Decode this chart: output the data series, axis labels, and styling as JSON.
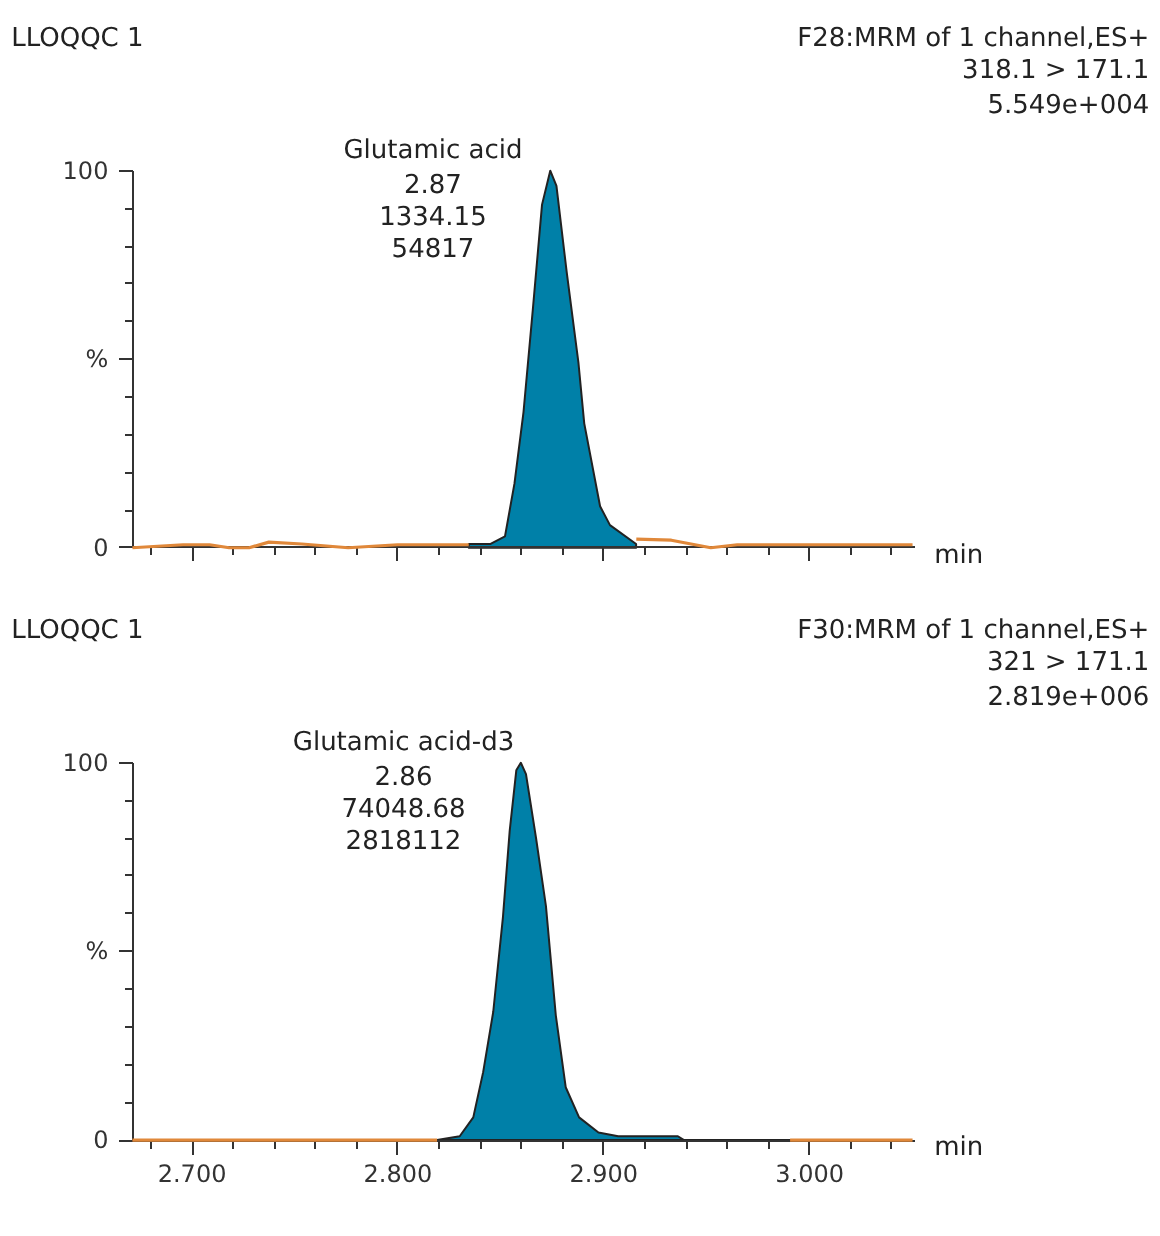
{
  "chart_data": [
    {
      "type": "area",
      "title": "LLOQQC 1",
      "subtitle": "F28:MRM of 1 channel,ES+\n318.1 > 171.1\n5.549e+004",
      "xlabel": "min",
      "xlim": [
        2.671,
        3.051
      ],
      "ylim": [
        0,
        100
      ],
      "xticks": [
        {
          "value": 2.7,
          "label": null
        },
        {
          "value": 2.8,
          "label": null
        },
        {
          "value": 2.9,
          "label": null
        },
        {
          "value": 3.0,
          "label": null
        }
      ],
      "yticks": [
        0,
        {
          "value": 50,
          "label": "%"
        },
        100
      ],
      "tick_labels": "y",
      "annotations": [
        {
          "text": "Glutamic acid\n2.87\n1334.15\n54817",
          "x": 2.874,
          "y": 100
        }
      ],
      "series": [
        {
          "type": "line",
          "color": "#e0883a",
          "x": [
            2.671,
            2.6956,
            2.7085,
            2.718,
            2.7277,
            2.7373,
            2.7533,
            2.7758,
            2.7998,
            2.8344
          ],
          "values": [
            0,
            0.8,
            0.8,
            0,
            0,
            1.5,
            1,
            0,
            0.8,
            0.8
          ]
        },
        {
          "type": "line",
          "color": "#e0883a",
          "x": [
            2.9158,
            2.9328,
            2.952,
            2.9648,
            2.9712,
            3.05
          ],
          "values": [
            2.3,
            2,
            0,
            0.8,
            0.8,
            0.8
          ]
        },
        {
          "color": "#0080a8",
          "x": [
            2.8344,
            2.845,
            2.852,
            2.8566,
            2.861,
            2.8655,
            2.87,
            2.874,
            2.877,
            2.882,
            2.8877,
            2.8905,
            2.8982,
            2.903,
            2.9157
          ],
          "values": [
            1,
            1,
            3,
            17,
            36,
            63,
            91,
            100,
            96,
            73,
            49,
            33,
            11,
            6,
            1
          ]
        }
      ]
    },
    {
      "type": "area",
      "title": "LLOQQC 1",
      "subtitle": "F30:MRM of 1 channel,ES+\n321 > 171.1\n2.819e+006",
      "xlabel": "min",
      "xlim": [
        2.671,
        3.051
      ],
      "ylim": [
        0,
        100
      ],
      "xticks": [
        {
          "value": 2.7,
          "label": "2.700"
        },
        {
          "value": 2.8,
          "label": "2.800"
        },
        {
          "value": 2.9,
          "label": "2.900"
        },
        {
          "value": 3.0,
          "label": "3.000"
        }
      ],
      "yticks": [
        0,
        {
          "value": 50,
          "label": "%"
        },
        100
      ],
      "annotations": [
        {
          "text": "Glutamic acid-d3\n2.86\n74048.68\n2818112",
          "x": 2.8597,
          "y": 100
        }
      ],
      "series": [
        {
          "type": "line",
          "color": "#e0883a",
          "x": [
            2.671,
            2.819
          ],
          "values": [
            0,
            0
          ]
        },
        {
          "type": "line",
          "color": "#e0883a",
          "x": [
            2.9905,
            3.05
          ],
          "values": [
            0,
            0
          ]
        },
        {
          "color": "#0080a8",
          "x": [
            2.819,
            2.83,
            2.8366,
            2.8414,
            2.8463,
            2.851,
            2.8543,
            2.8575,
            2.8597,
            2.8622,
            2.8671,
            2.8719,
            2.8767,
            2.8815,
            2.888,
            2.8974,
            2.907,
            2.936,
            2.939,
            2.9905
          ],
          "values": [
            0,
            1,
            6,
            18,
            34,
            59,
            82,
            98,
            100,
            97,
            80,
            62,
            33,
            14,
            6,
            2,
            1,
            1,
            0,
            0
          ]
        }
      ]
    }
  ]
}
